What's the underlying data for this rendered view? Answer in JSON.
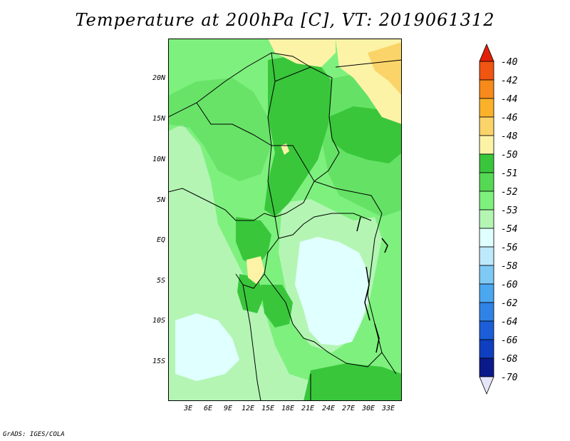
{
  "title": "Temperature at 200hPa [C], VT: 2019061312",
  "credit": "GrADS: IGES/COLA",
  "lat_labels": [
    "20N",
    "15N",
    "10N",
    "5N",
    "EQ",
    "5S",
    "10S",
    "15S"
  ],
  "lon_labels": [
    "3E",
    "6E",
    "9E",
    "12E",
    "15E",
    "18E",
    "21E",
    "24E",
    "27E",
    "30E",
    "33E"
  ],
  "colorbar": {
    "labels": [
      "-40",
      "-42",
      "-44",
      "-46",
      "-48",
      "-50",
      "-51",
      "-52",
      "-53",
      "-54",
      "-56",
      "-58",
      "-60",
      "-62",
      "-64",
      "-66",
      "-68",
      "-70"
    ],
    "colors": [
      "#e22008",
      "#f05512",
      "#f78a1a",
      "#fbb22a",
      "#fbd469",
      "#fdf3a7",
      "#39c63b",
      "#55d955",
      "#7ef07e",
      "#b4f5b4",
      "#e0ffff",
      "#bde9fb",
      "#7fc9f5",
      "#4aa7f0",
      "#2e83e5",
      "#1b5ed8",
      "#0f3fc0",
      "#0b1a8a",
      "#e6e6fa"
    ]
  },
  "map": {
    "region": "Central Africa",
    "lon_range": [
      0,
      35
    ],
    "lat_range": [
      -20,
      24
    ],
    "colors": {
      "dark_green": "#39c63b",
      "mid_green": "#55d955",
      "light_green": "#7ef07e",
      "pale_green": "#b4f5b4",
      "cyan": "#e0ffff",
      "pale_yellow": "#fdf3a7",
      "light_yellow": "#fbd469"
    }
  }
}
